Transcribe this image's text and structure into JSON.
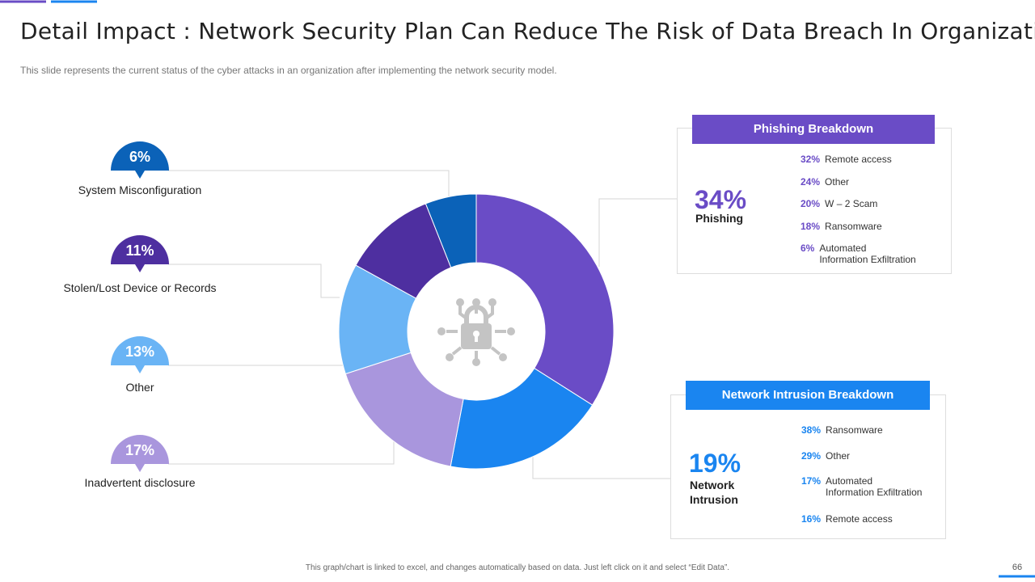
{
  "header": {
    "title": "Detail Impact : Network Security Plan Can Reduce The Risk of Data Breach In Organization",
    "subtitle": "This slide represents the current status of the cyber attacks in an organization after implementing the network security model."
  },
  "chart_data": {
    "type": "pie",
    "donut": true,
    "categories": [
      "Phishing",
      "Network Intrusion",
      "Inadvertent disclosure",
      "Other",
      "Stolen/Lost Device or Records",
      "System Misconfiguration"
    ],
    "values": [
      34,
      19,
      17,
      13,
      11,
      6
    ],
    "value_labels": [
      "34%",
      "19%",
      "17%",
      "13%",
      "11%",
      "6%"
    ],
    "colors": [
      "#6a4cc6",
      "#1a85f0",
      "#a996dd",
      "#6ab4f5",
      "#4e2fa0",
      "#0b62b8"
    ]
  },
  "phishing_breakdown": {
    "title": "Phishing Breakdown",
    "items": [
      {
        "value": "32%",
        "label": "Remote access"
      },
      {
        "value": "24%",
        "label": "Other"
      },
      {
        "value": "20%",
        "label": "W – 2 Scam"
      },
      {
        "value": "18%",
        "label": "Ransomware"
      },
      {
        "value": "6%",
        "label": "Automated\nInformation Exfiltration"
      }
    ]
  },
  "network_breakdown": {
    "title": "Network Intrusion  Breakdown",
    "items": [
      {
        "value": "38%",
        "label": "Ransomware"
      },
      {
        "value": "29%",
        "label": "Other"
      },
      {
        "value": "17%",
        "label": "Automated\nInformation Exfiltration"
      },
      {
        "value": "16%",
        "label": "Remote access"
      }
    ]
  },
  "footer": {
    "note": "This graph/chart is linked to excel, and changes automatically based on data. Just left click on it and select “Edit Data”.",
    "page_number": "66"
  }
}
